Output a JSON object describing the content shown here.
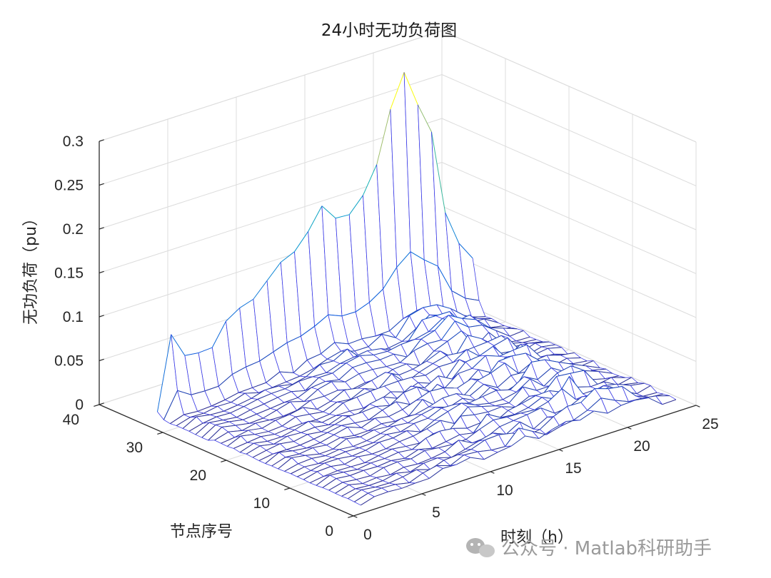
{
  "chart_data": {
    "type": "surface",
    "title": "24小时无功负荷图",
    "xlabel": "时刻（h）",
    "ylabel": "节点序号",
    "zlabel": "无功负荷（pu）",
    "xlim": [
      0,
      25
    ],
    "ylim": [
      0,
      40
    ],
    "zlim": [
      0,
      0.3
    ],
    "xticks": [
      "0",
      "5",
      "10",
      "15",
      "20",
      "25"
    ],
    "yticks": [
      "0",
      "10",
      "20",
      "30",
      "40"
    ],
    "zticks": [
      "0",
      "0.05",
      "0.1",
      "0.15",
      "0.2",
      "0.25",
      "0.3"
    ],
    "grid": true,
    "colormap": "parula",
    "hours": [
      1,
      2,
      3,
      4,
      5,
      6,
      7,
      8,
      9,
      10,
      11,
      12,
      13,
      14,
      15,
      16,
      17,
      18,
      19,
      20,
      21,
      22,
      23,
      24
    ],
    "nodes": [
      1,
      2,
      3,
      4,
      5,
      6,
      7,
      8,
      9,
      10,
      11,
      12,
      13,
      14,
      15,
      16,
      17,
      18,
      19,
      20,
      21,
      22,
      23,
      24,
      25,
      26,
      27,
      28,
      29,
      30,
      31,
      32,
      33
    ],
    "peak_profile": [
      0.009,
      0.092,
      0.063,
      0.061,
      0.062,
      0.087,
      0.097,
      0.102,
      0.118,
      0.134,
      0.141,
      0.159,
      0.183,
      0.164,
      0.163,
      0.18,
      0.21,
      0.268,
      0.305,
      0.263,
      0.227,
      0.13,
      0.09,
      0.068
    ],
    "secondary_profile": [
      0.003,
      0.012,
      0.01,
      0.01,
      0.011,
      0.015,
      0.017,
      0.018,
      0.021,
      0.024,
      0.026,
      0.029,
      0.034,
      0.03,
      0.03,
      0.032,
      0.037,
      0.046,
      0.052,
      0.045,
      0.039,
      0.024,
      0.017,
      0.012
    ]
  },
  "watermark": "公众号 · Matlab科研助手"
}
